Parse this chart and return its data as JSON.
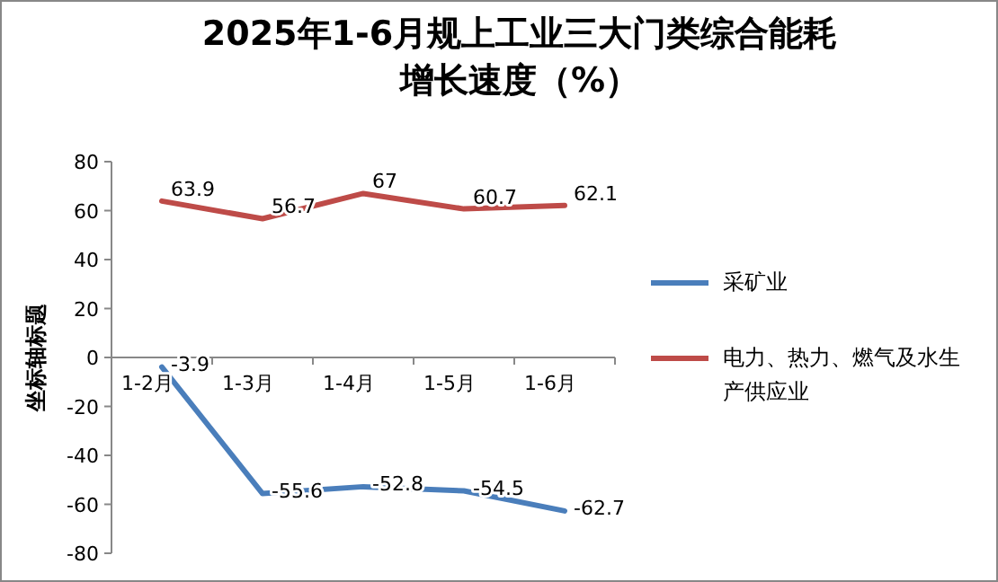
{
  "chart_data": {
    "type": "line",
    "title": "2025年1-6月规上工业三大门类综合能耗增长速度（%）",
    "ylabel": "坐标轴标题",
    "categories": [
      "1-2月",
      "1-3月",
      "1-4月",
      "1-5月",
      "1-6月"
    ],
    "series": [
      {
        "name": "采矿业",
        "color": "#4a7ebb",
        "values": [
          -3.9,
          -55.6,
          -52.8,
          -54.5,
          -62.7
        ]
      },
      {
        "name": "电力、热力、燃气及水生产供应业",
        "color": "#be4b48",
        "values": [
          63.9,
          56.7,
          67,
          60.7,
          62.1
        ]
      }
    ],
    "ylim": [
      -80,
      80
    ],
    "yticks": [
      -80,
      -60,
      -40,
      -20,
      0,
      20,
      40,
      60,
      80
    ],
    "data_labels": true,
    "legend": "right",
    "marker": "none"
  }
}
